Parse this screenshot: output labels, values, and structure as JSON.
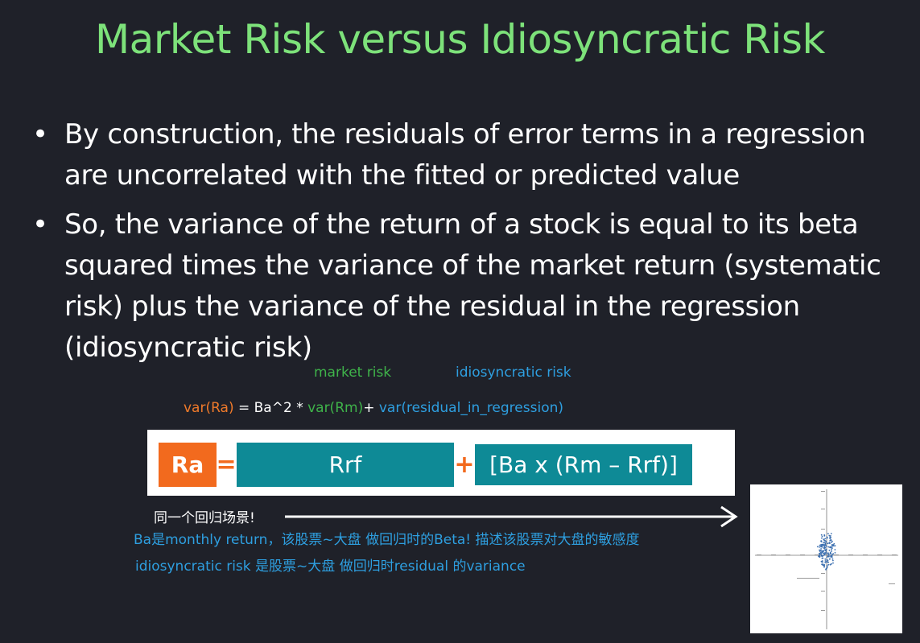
{
  "slide": {
    "title": "Market Risk versus Idiosyncratic Risk",
    "bullets": [
      {
        "line1": "By construction, the residuals of error terms in a regression",
        "line2": "are uncorrelated with the fitted or predicted value"
      },
      {
        "line1": "So, the variance of the return of a stock is equal to its beta",
        "line2": "squared times the variance of the market return (systematic",
        "line3": "risk) plus the variance of the residual in the regression",
        "line4": "(idiosyncratic risk)"
      }
    ]
  },
  "annotations": {
    "market_risk": "market risk",
    "idiosyncratic_risk": "idiosyncratic risk",
    "formula": {
      "var_ra": "var(Ra)",
      "equals_beta": " = Ba^2 * ",
      "var_rm": "var(Rm)",
      "plus": "+ ",
      "var_residual": "var(residual_in_regression)"
    },
    "same_regression": "同一个回归场景!",
    "note_beta": "Ba是monthly return，该股票~大盘 做回归时的Beta! 描述该股票对大盘的敏感度",
    "note_idio": "idiosyncratic risk 是股票~大盘 做回归时residual 的variance"
  },
  "equation": {
    "ra": "Ra",
    "equals": "=",
    "rrf": "Rrf",
    "plus": "+",
    "beta_term": "[Ba x (Rm – Rrf)]"
  },
  "colors": {
    "background": "#1f2129",
    "title": "#7de27a",
    "orange": "#f26a1e",
    "teal": "#0e8a96",
    "blue": "#2e9fe0",
    "green": "#3fb34a"
  }
}
